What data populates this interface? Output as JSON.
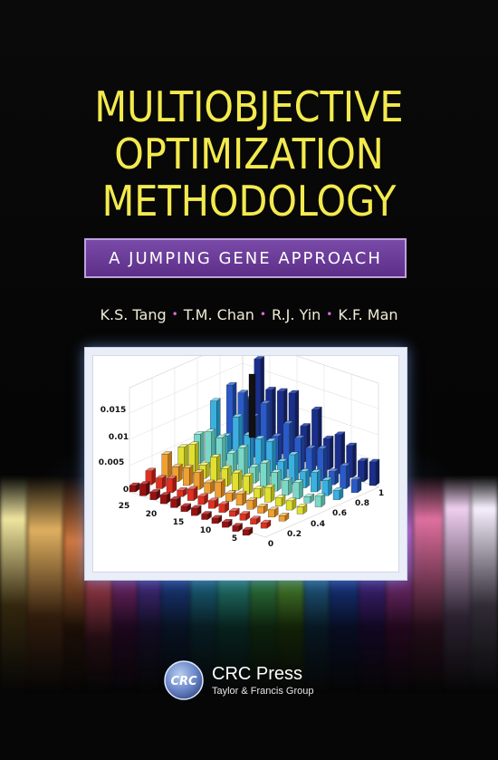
{
  "title_lines": [
    "MULTIOBJECTIVE",
    "OPTIMIZATION",
    "METHODOLOGY"
  ],
  "subtitle": "A JUMPING GENE APPROACH",
  "authors": [
    "K.S. Tang",
    "T.M. Chan",
    "R.J. Yin",
    "K.F. Man"
  ],
  "author_separator": "•",
  "figure": {
    "z_ticks": [
      "0",
      "0.005",
      "0.01",
      "0.015"
    ],
    "left_ticks": [
      "25",
      "20",
      "15",
      "10",
      "5"
    ],
    "right_ticks": [
      "0",
      "0.2",
      "0.4",
      "0.6",
      "0.8",
      "1"
    ]
  },
  "publisher": {
    "logo_text": "CRC",
    "name": "CRC Press",
    "group": "Taylor & Francis Group"
  },
  "colors": {
    "title": "#f3ea4e",
    "subtitle_bg": "#6a3c98",
    "author_separator": "#d96ad8",
    "background": "#050505"
  }
}
